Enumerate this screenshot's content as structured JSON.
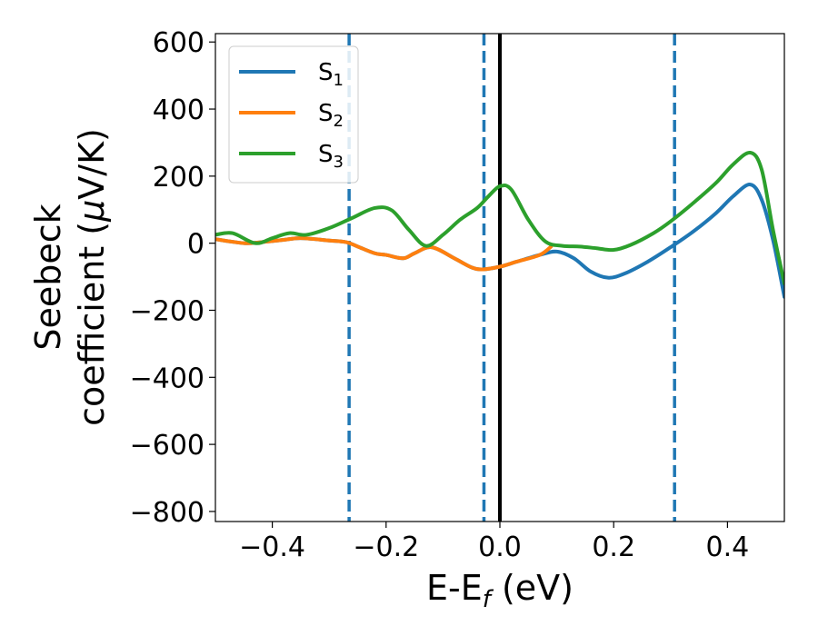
{
  "chart_data": {
    "type": "line",
    "xlabel": {
      "base": "E-E",
      "sub": "f",
      "tail": " (eV)"
    },
    "ylabel": {
      "line1": "Seebeck",
      "line2": "coefficient  (",
      "mu": "μ",
      "tail": "V/K)"
    },
    "xlim": [
      -0.5,
      0.5
    ],
    "ylim": [
      -830,
      625
    ],
    "xticks": [
      -0.4,
      -0.2,
      0.0,
      0.2,
      0.4
    ],
    "xtick_labels": [
      "−0.4",
      "−0.2",
      "0.0",
      "0.2",
      "0.4"
    ],
    "yticks": [
      600,
      400,
      200,
      0,
      -200,
      -400,
      -600,
      -800
    ],
    "ytick_labels": [
      "600",
      "400",
      "200",
      "0",
      "−200",
      "−400",
      "−600",
      "−800"
    ],
    "legend_position": "upper-left",
    "vlines": [
      {
        "x": -0.265,
        "color": "#1f77b4",
        "style": "dashed"
      },
      {
        "x": -0.028,
        "color": "#1f77b4",
        "style": "dashed"
      },
      {
        "x": 0.0,
        "color": "#000000",
        "style": "solid"
      },
      {
        "x": 0.307,
        "color": "#1f77b4",
        "style": "dashed"
      }
    ],
    "series": [
      {
        "name_base": "S",
        "name_sub": "1",
        "color": "#1f77b4",
        "x": [
          -0.5,
          -0.45,
          -0.42,
          -0.38,
          -0.35,
          -0.3,
          -0.27,
          -0.25,
          -0.22,
          -0.2,
          -0.17,
          -0.15,
          -0.12,
          -0.08,
          -0.05,
          -0.03,
          0.0,
          0.03,
          0.07,
          0.1,
          0.13,
          0.16,
          0.19,
          0.22,
          0.26,
          0.3,
          0.34,
          0.38,
          0.41,
          0.44,
          0.46,
          0.48,
          0.5
        ],
        "y": [
          12,
          0,
          3,
          10,
          15,
          8,
          3,
          -10,
          -30,
          -35,
          -45,
          -30,
          -12,
          -45,
          -72,
          -78,
          -70,
          -55,
          -35,
          -25,
          -45,
          -85,
          -103,
          -90,
          -55,
          -12,
          35,
          90,
          140,
          175,
          130,
          10,
          -160
        ]
      },
      {
        "name_base": "S",
        "name_sub": "2",
        "color": "#ff7f0e",
        "x": [
          -0.5,
          -0.45,
          -0.42,
          -0.38,
          -0.35,
          -0.3,
          -0.27,
          -0.25,
          -0.22,
          -0.2,
          -0.17,
          -0.15,
          -0.12,
          -0.08,
          -0.05,
          -0.03,
          0.0,
          0.03,
          0.07,
          0.09
        ],
        "y": [
          12,
          0,
          3,
          10,
          15,
          8,
          3,
          -10,
          -30,
          -35,
          -45,
          -30,
          -12,
          -45,
          -72,
          -78,
          -70,
          -55,
          -35,
          -10
        ]
      },
      {
        "name_base": "S",
        "name_sub": "3",
        "color": "#2ca02c",
        "x": [
          -0.5,
          -0.47,
          -0.43,
          -0.4,
          -0.37,
          -0.34,
          -0.3,
          -0.26,
          -0.22,
          -0.19,
          -0.16,
          -0.13,
          -0.1,
          -0.07,
          -0.04,
          -0.02,
          0.0,
          0.02,
          0.05,
          0.08,
          0.11,
          0.14,
          0.17,
          0.2,
          0.23,
          0.27,
          0.3,
          0.34,
          0.38,
          0.41,
          0.44,
          0.46,
          0.48,
          0.5
        ],
        "y": [
          25,
          30,
          0,
          15,
          30,
          25,
          45,
          75,
          105,
          98,
          40,
          -8,
          25,
          70,
          105,
          140,
          170,
          160,
          70,
          5,
          -8,
          -10,
          -15,
          -20,
          -5,
          30,
          65,
          120,
          180,
          235,
          270,
          220,
          40,
          -120
        ]
      }
    ]
  }
}
